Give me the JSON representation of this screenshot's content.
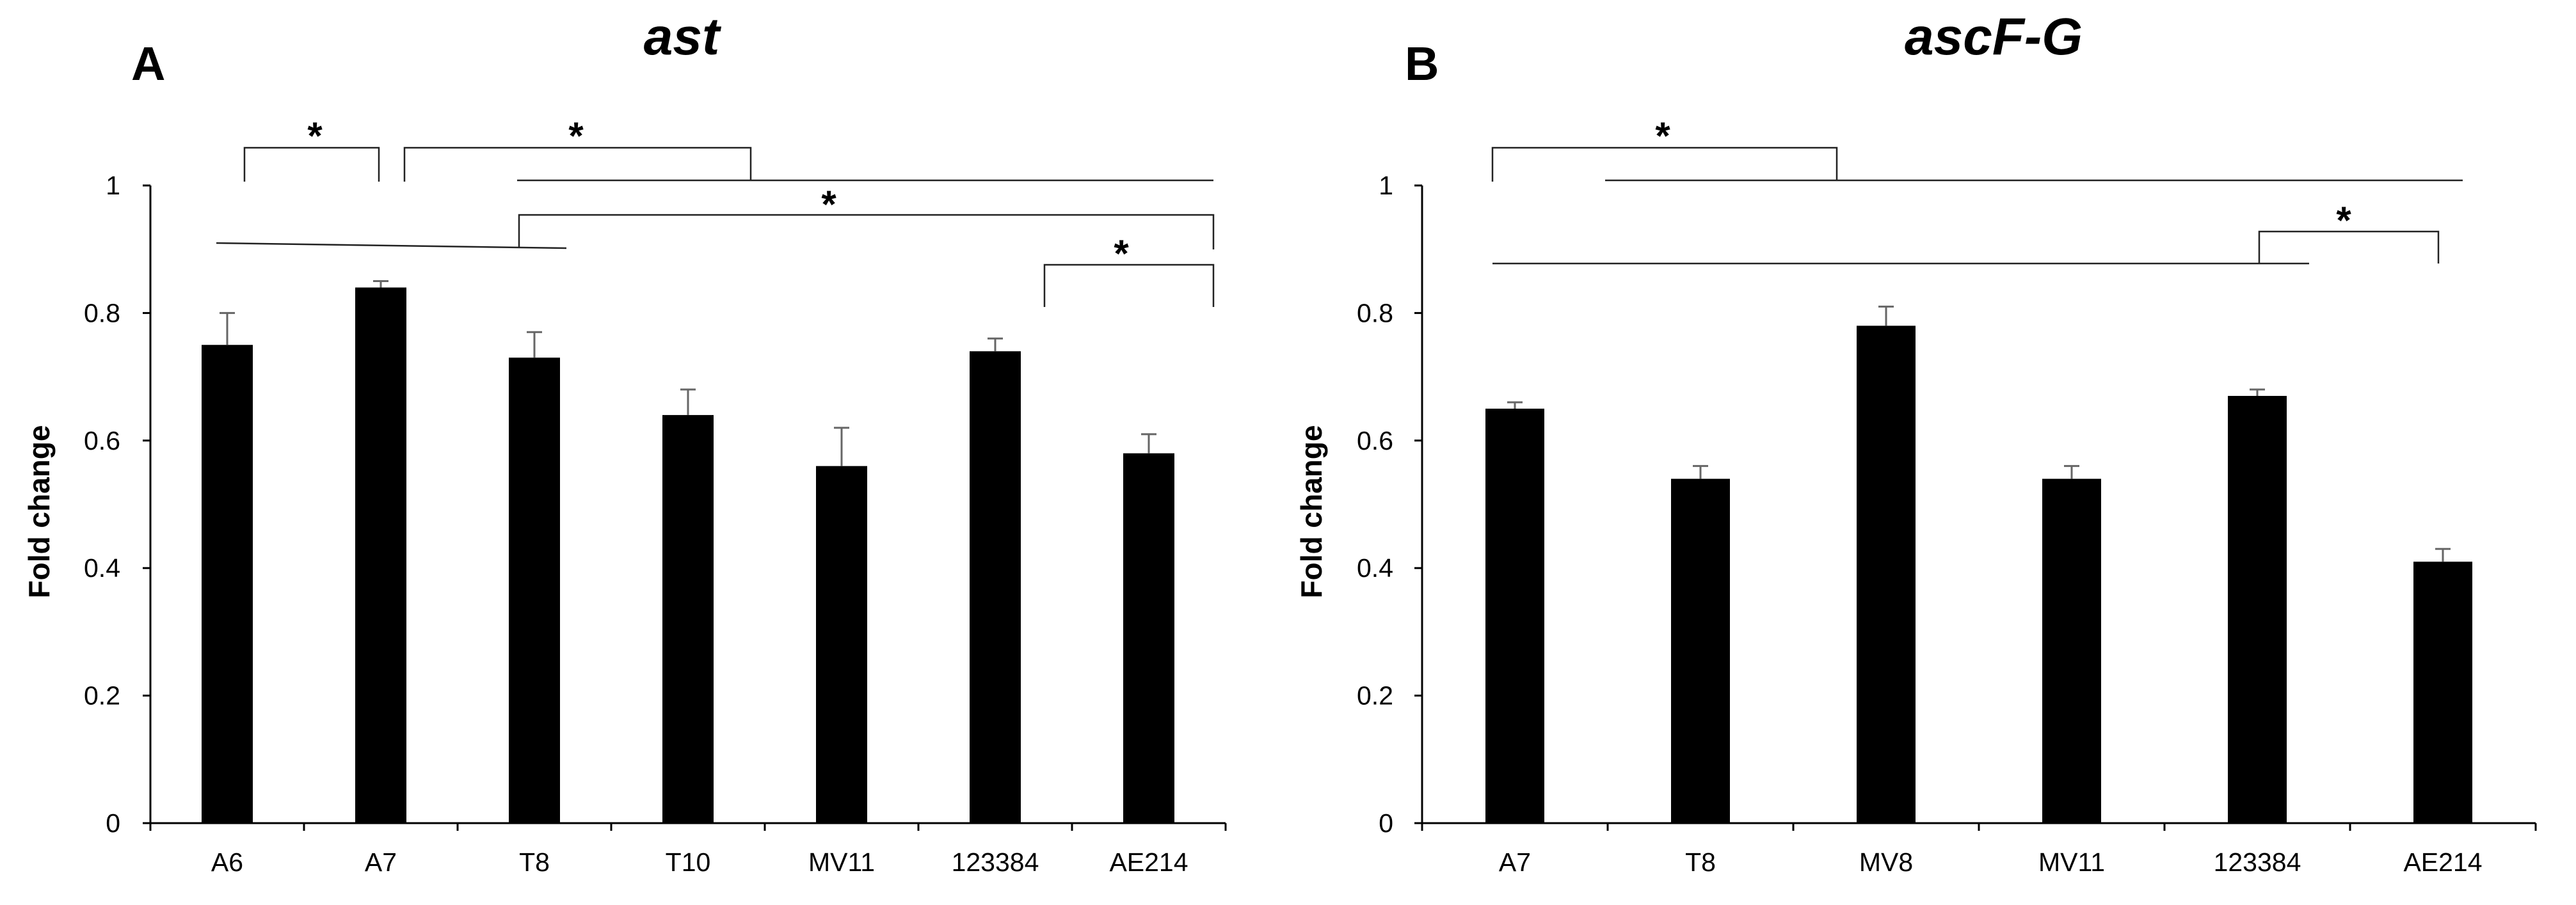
{
  "chart_data": [
    {
      "type": "bar",
      "panel": "A",
      "title": "ast",
      "xlabel": "",
      "ylabel": "Fold change",
      "ylim": [
        0,
        1
      ],
      "yticks": [
        0,
        0.2,
        0.4,
        0.6,
        0.8,
        1
      ],
      "ytick_labels": [
        "0",
        "0.2",
        "0.4",
        "0.6",
        "0.8",
        "1"
      ],
      "grid": false,
      "categories": [
        "A6",
        "A7",
        "T8",
        "T10",
        "MV11",
        "123384",
        "AE214"
      ],
      "values": [
        0.75,
        0.84,
        0.73,
        0.64,
        0.56,
        0.74,
        0.58
      ],
      "errors": [
        0.05,
        0.01,
        0.04,
        0.04,
        0.06,
        0.02,
        0.03
      ],
      "significance": [
        {
          "label": "*",
          "from": "A6",
          "to": "A7",
          "level": 0.96
        },
        {
          "label": "*",
          "from": "A7",
          "to": "T8",
          "level": 0.96,
          "line_to": "AE214",
          "line_level": 0.91
        },
        {
          "label": "*",
          "from": "T8",
          "to": "AE214",
          "level": 0.85,
          "line_from": "A6",
          "line_level": 0.91
        },
        {
          "label": "*",
          "from": "123384",
          "to": "AE214",
          "level": 0.88
        }
      ]
    },
    {
      "type": "bar",
      "panel": "B",
      "title": "ascF-G",
      "xlabel": "",
      "ylabel": "Fold change",
      "ylim": [
        0,
        1
      ],
      "yticks": [
        0,
        0.2,
        0.4,
        0.6,
        0.8,
        1
      ],
      "ytick_labels": [
        "0",
        "0.2",
        "0.4",
        "0.6",
        "0.8",
        "1"
      ],
      "grid": false,
      "categories": [
        "A7",
        "T8",
        "MV8",
        "MV11",
        "123384",
        "AE214"
      ],
      "values": [
        0.65,
        0.54,
        0.78,
        0.54,
        0.67,
        0.41
      ],
      "errors": [
        0.01,
        0.02,
        0.03,
        0.02,
        0.01,
        0.02
      ],
      "significance": [
        {
          "label": "*",
          "from": "A7",
          "to": "MV8",
          "level": 0.96,
          "line_to": "AE214",
          "line_level": 0.91
        },
        {
          "label": "*",
          "from": "123384",
          "to": "AE214",
          "level": 0.84,
          "line_from": "A7",
          "line_level": 0.78
        }
      ]
    }
  ]
}
